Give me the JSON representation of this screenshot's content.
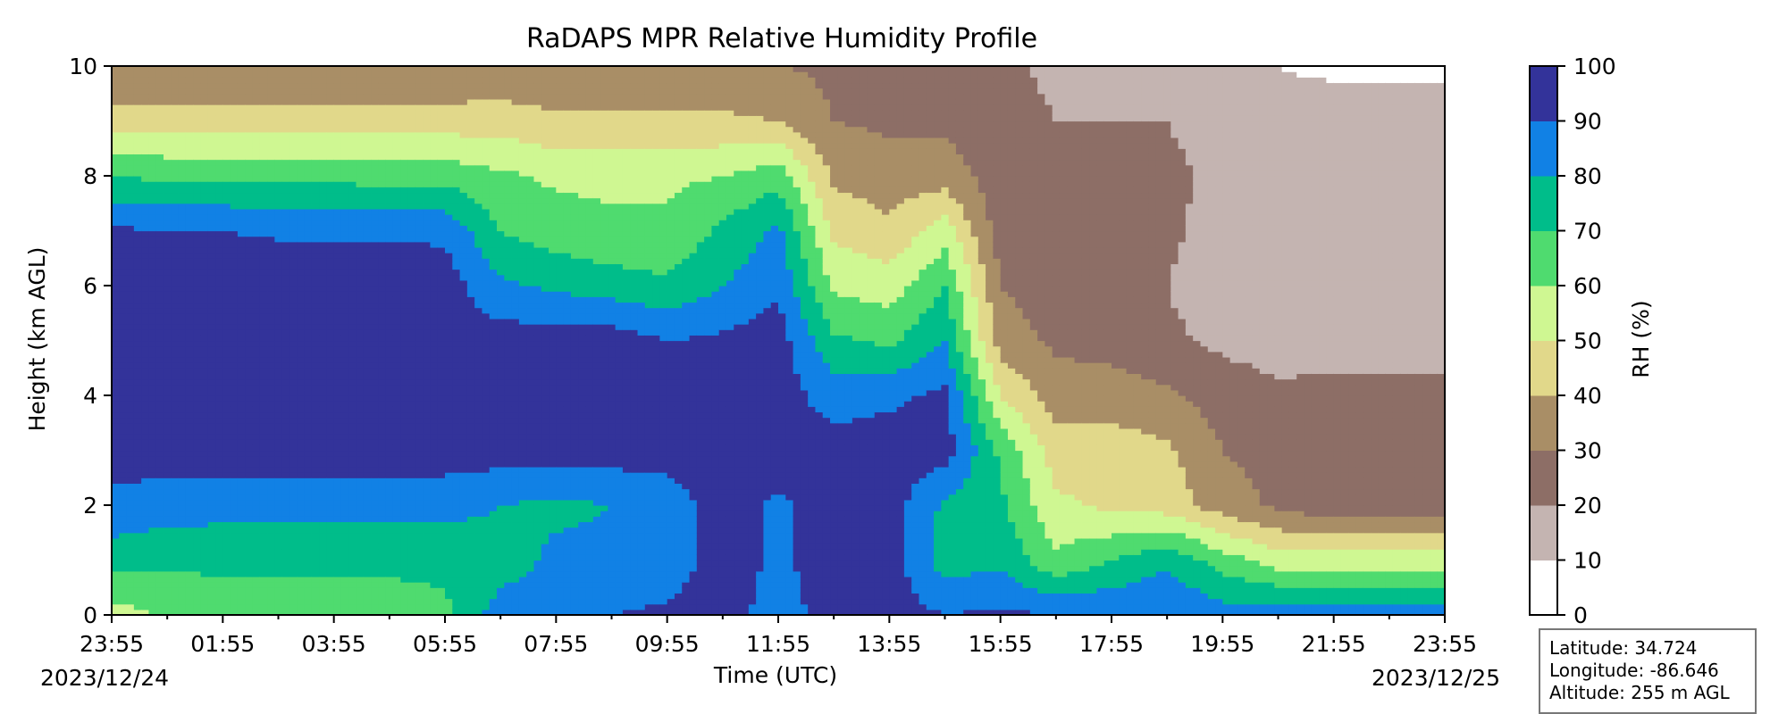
{
  "chart_data": {
    "type": "heatmap",
    "subtype": "filled-contour",
    "title": "RaDAPS MPR Relative Humidity Profile",
    "xlabel": "Time (UTC)",
    "ylabel": "Height (km AGL)",
    "x_ticks": [
      "23:55",
      "01:55",
      "03:55",
      "05:55",
      "07:55",
      "09:55",
      "11:55",
      "13:55",
      "15:55",
      "17:55",
      "19:55",
      "21:55",
      "23:55"
    ],
    "x_start_date": "2023/12/24",
    "x_end_date": "2023/12/25",
    "ylim": [
      0,
      10
    ],
    "y_ticks": [
      0,
      2,
      4,
      6,
      8,
      10
    ],
    "colorbar": {
      "label": "RH (%)",
      "levels": [
        0,
        10,
        20,
        30,
        40,
        50,
        60,
        70,
        80,
        90,
        100
      ],
      "colors": [
        "#ffffff",
        "#c4b4b1",
        "#8d6e66",
        "#a98e66",
        "#e1d88a",
        "#cff792",
        "#4fdb6f",
        "#00bd8a",
        "#1181e5",
        "#33339a"
      ]
    },
    "columns_hours": [
      0,
      1,
      2,
      3,
      4,
      5,
      6,
      7,
      8,
      9,
      10,
      11,
      12,
      13,
      14,
      15,
      16,
      17,
      18,
      19,
      20,
      21,
      22,
      23,
      24
    ],
    "profiles_rh_percent_by_height_km": {
      "heights_km": [
        0,
        1,
        2,
        3,
        4,
        5,
        6,
        7,
        8,
        9,
        10
      ],
      "values": [
        [
          55,
          75,
          87,
          95,
          95,
          95,
          95,
          92,
          70,
          45,
          30
        ],
        [
          62,
          72,
          85,
          95,
          95,
          95,
          95,
          90,
          68,
          45,
          30
        ],
        [
          65,
          72,
          84,
          95,
          95,
          95,
          95,
          90,
          68,
          45,
          30
        ],
        [
          65,
          72,
          84,
          95,
          95,
          95,
          95,
          89,
          67,
          45,
          30
        ],
        [
          66,
          72,
          84,
          95,
          95,
          95,
          95,
          89,
          67,
          45,
          30
        ],
        [
          66,
          72,
          84,
          95,
          95,
          95,
          95,
          89,
          66,
          45,
          30
        ],
        [
          68,
          72,
          84,
          95,
          95,
          95,
          95,
          88,
          66,
          45,
          30
        ],
        [
          85,
          75,
          80,
          95,
          95,
          95,
          82,
          70,
          62,
          45,
          32
        ],
        [
          88,
          82,
          78,
          95,
          95,
          95,
          78,
          65,
          58,
          42,
          32
        ],
        [
          90,
          82,
          80,
          95,
          95,
          95,
          75,
          62,
          58,
          42,
          32
        ],
        [
          92,
          84,
          84,
          95,
          95,
          90,
          72,
          62,
          58,
          42,
          32
        ],
        [
          95,
          95,
          95,
          95,
          95,
          92,
          80,
          72,
          60,
          42,
          32
        ],
        [
          85,
          88,
          88,
          95,
          95,
          95,
          88,
          82,
          66,
          40,
          30
        ],
        [
          95,
          95,
          95,
          95,
          85,
          72,
          58,
          48,
          38,
          30,
          28
        ],
        [
          95,
          95,
          95,
          95,
          88,
          68,
          55,
          42,
          35,
          28,
          28
        ],
        [
          90,
          75,
          78,
          95,
          92,
          80,
          70,
          55,
          35,
          28,
          26
        ],
        [
          92,
          78,
          72,
          68,
          50,
          35,
          30,
          25,
          25,
          24,
          22
        ],
        [
          90,
          62,
          52,
          45,
          35,
          28,
          25,
          24,
          22,
          20,
          18
        ],
        [
          90,
          70,
          48,
          45,
          35,
          26,
          22,
          22,
          22,
          20,
          18
        ],
        [
          90,
          78,
          45,
          42,
          32,
          22,
          20,
          22,
          22,
          20,
          16
        ],
        [
          85,
          65,
          35,
          30,
          25,
          18,
          14,
          16,
          18,
          16,
          12
        ],
        [
          88,
          55,
          28,
          26,
          22,
          16,
          15,
          16,
          18,
          14,
          10
        ],
        [
          85,
          55,
          22,
          22,
          22,
          17,
          16,
          17,
          17,
          15,
          8
        ],
        [
          85,
          55,
          22,
          22,
          22,
          17,
          16,
          17,
          17,
          15,
          8
        ],
        [
          85,
          55,
          22,
          22,
          22,
          17,
          16,
          17,
          17,
          15,
          8
        ]
      ]
    }
  },
  "location": {
    "latitude": "Latitude: 34.724",
    "longitude": "Longitude: -86.646",
    "altitude": "Altitude: 255 m AGL"
  }
}
